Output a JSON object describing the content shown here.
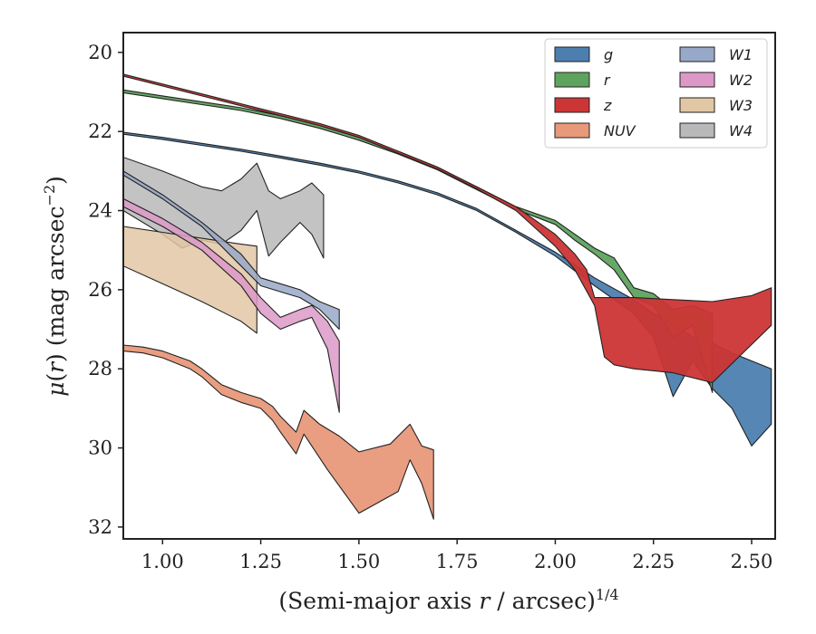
{
  "chart_data": {
    "type": "area",
    "xlabel": "(Semi-major axis r / arcsec)",
    "xlabel_main": "(Semi-major axis ",
    "xlabel_var": "r",
    "xlabel_rest": " / arcsec)",
    "xlabel_sup": "1/4",
    "ylabel_mu": "μ",
    "ylabel_paren_open": "(",
    "ylabel_var": "r",
    "ylabel_paren_close": ")",
    "ylabel_unit": " (mag arcsec",
    "ylabel_sup": "−2",
    "ylabel_end": ")",
    "xlim": [
      0.9,
      2.56
    ],
    "ylim": [
      32.3,
      19.5
    ],
    "y_inverted": true,
    "xticks": [
      1.0,
      1.25,
      1.5,
      1.75,
      2.0,
      2.25,
      2.5
    ],
    "xtick_labels": [
      "1.00",
      "1.25",
      "1.50",
      "1.75",
      "2.00",
      "2.25",
      "2.50"
    ],
    "yticks": [
      20,
      22,
      24,
      26,
      28,
      30,
      32
    ],
    "ytick_labels": [
      "20",
      "22",
      "24",
      "26",
      "28",
      "30",
      "32"
    ],
    "legend_placement": "top-right",
    "series": [
      {
        "name": "g",
        "color": "#4c7fb0",
        "upper": [
          [
            0.9,
            22.02
          ],
          [
            1.0,
            22.15
          ],
          [
            1.1,
            22.3
          ],
          [
            1.2,
            22.45
          ],
          [
            1.3,
            22.62
          ],
          [
            1.4,
            22.8
          ],
          [
            1.5,
            23.0
          ],
          [
            1.6,
            23.25
          ],
          [
            1.7,
            23.55
          ],
          [
            1.8,
            23.95
          ],
          [
            1.9,
            24.5
          ],
          [
            2.0,
            25.05
          ],
          [
            2.1,
            25.7
          ],
          [
            2.2,
            26.25
          ],
          [
            2.25,
            26.6
          ],
          [
            2.3,
            26.85
          ],
          [
            2.35,
            27.2
          ],
          [
            2.4,
            27.35
          ],
          [
            2.45,
            27.6
          ],
          [
            2.5,
            27.8
          ],
          [
            2.55,
            28.0
          ]
        ],
        "lower": [
          [
            0.9,
            22.07
          ],
          [
            1.0,
            22.2
          ],
          [
            1.1,
            22.35
          ],
          [
            1.2,
            22.5
          ],
          [
            1.3,
            22.67
          ],
          [
            1.4,
            22.85
          ],
          [
            1.5,
            23.05
          ],
          [
            1.6,
            23.3
          ],
          [
            1.7,
            23.6
          ],
          [
            1.8,
            24.0
          ],
          [
            1.9,
            24.55
          ],
          [
            2.0,
            25.15
          ],
          [
            2.1,
            25.9
          ],
          [
            2.2,
            26.6
          ],
          [
            2.25,
            27.2
          ],
          [
            2.3,
            28.7
          ],
          [
            2.35,
            27.8
          ],
          [
            2.4,
            28.5
          ],
          [
            2.45,
            29.0
          ],
          [
            2.5,
            29.95
          ],
          [
            2.55,
            29.4
          ]
        ]
      },
      {
        "name": "r",
        "color": "#5ea45e",
        "upper": [
          [
            0.9,
            20.95
          ],
          [
            1.0,
            21.1
          ],
          [
            1.1,
            21.25
          ],
          [
            1.2,
            21.4
          ],
          [
            1.3,
            21.6
          ],
          [
            1.4,
            21.85
          ],
          [
            1.5,
            22.15
          ],
          [
            1.6,
            22.5
          ],
          [
            1.7,
            22.9
          ],
          [
            1.8,
            23.4
          ],
          [
            1.9,
            23.9
          ],
          [
            2.0,
            24.25
          ],
          [
            2.05,
            24.6
          ],
          [
            2.1,
            24.95
          ],
          [
            2.15,
            25.2
          ],
          [
            2.2,
            25.95
          ],
          [
            2.25,
            26.1
          ],
          [
            2.3,
            26.5
          ],
          [
            2.35,
            26.4
          ],
          [
            2.4,
            26.6
          ]
        ],
        "lower": [
          [
            0.9,
            21.02
          ],
          [
            1.0,
            21.17
          ],
          [
            1.1,
            21.32
          ],
          [
            1.2,
            21.47
          ],
          [
            1.3,
            21.67
          ],
          [
            1.4,
            21.92
          ],
          [
            1.5,
            22.22
          ],
          [
            1.6,
            22.57
          ],
          [
            1.7,
            22.97
          ],
          [
            1.8,
            23.47
          ],
          [
            1.9,
            23.97
          ],
          [
            2.0,
            24.35
          ],
          [
            2.05,
            24.75
          ],
          [
            2.1,
            25.1
          ],
          [
            2.15,
            25.5
          ],
          [
            2.2,
            26.2
          ],
          [
            2.25,
            26.4
          ],
          [
            2.3,
            27.2
          ],
          [
            2.35,
            26.9
          ],
          [
            2.4,
            28.6
          ]
        ]
      },
      {
        "name": "z",
        "color": "#cc3535",
        "upper": [
          [
            0.9,
            20.55
          ],
          [
            1.0,
            20.8
          ],
          [
            1.1,
            21.05
          ],
          [
            1.2,
            21.3
          ],
          [
            1.3,
            21.55
          ],
          [
            1.4,
            21.8
          ],
          [
            1.5,
            22.1
          ],
          [
            1.6,
            22.5
          ],
          [
            1.7,
            22.9
          ],
          [
            1.8,
            23.4
          ],
          [
            1.9,
            23.9
          ],
          [
            2.0,
            24.6
          ],
          [
            2.05,
            25.1
          ],
          [
            2.08,
            25.5
          ],
          [
            2.1,
            26.2
          ],
          [
            2.2,
            26.2
          ],
          [
            2.3,
            26.25
          ],
          [
            2.4,
            26.3
          ],
          [
            2.5,
            26.15
          ],
          [
            2.55,
            25.95
          ]
        ],
        "lower": [
          [
            0.9,
            20.6
          ],
          [
            1.0,
            20.85
          ],
          [
            1.1,
            21.1
          ],
          [
            1.2,
            21.35
          ],
          [
            1.3,
            21.6
          ],
          [
            1.4,
            21.85
          ],
          [
            1.5,
            22.15
          ],
          [
            1.6,
            22.55
          ],
          [
            1.7,
            22.95
          ],
          [
            1.8,
            23.45
          ],
          [
            1.9,
            24.0
          ],
          [
            2.0,
            24.9
          ],
          [
            2.05,
            25.5
          ],
          [
            2.1,
            26.4
          ],
          [
            2.125,
            27.7
          ],
          [
            2.15,
            27.9
          ],
          [
            2.2,
            28.0
          ],
          [
            2.3,
            28.1
          ],
          [
            2.4,
            28.35
          ],
          [
            2.55,
            26.9
          ]
        ]
      },
      {
        "name": "NUV",
        "color": "#e8997a",
        "upper": [
          [
            0.9,
            27.4
          ],
          [
            0.95,
            27.45
          ],
          [
            1.0,
            27.55
          ],
          [
            1.07,
            27.8
          ],
          [
            1.1,
            28.0
          ],
          [
            1.15,
            28.4
          ],
          [
            1.2,
            28.6
          ],
          [
            1.25,
            28.75
          ],
          [
            1.28,
            28.95
          ],
          [
            1.3,
            29.2
          ],
          [
            1.34,
            29.6
          ],
          [
            1.36,
            29.05
          ],
          [
            1.4,
            29.4
          ],
          [
            1.45,
            29.7
          ],
          [
            1.5,
            30.1
          ],
          [
            1.58,
            29.9
          ],
          [
            1.63,
            29.4
          ],
          [
            1.66,
            29.95
          ],
          [
            1.69,
            30.05
          ]
        ],
        "lower": [
          [
            0.9,
            27.55
          ],
          [
            0.95,
            27.6
          ],
          [
            1.0,
            27.72
          ],
          [
            1.07,
            28.0
          ],
          [
            1.1,
            28.2
          ],
          [
            1.15,
            28.65
          ],
          [
            1.2,
            28.85
          ],
          [
            1.25,
            29.0
          ],
          [
            1.28,
            29.3
          ],
          [
            1.3,
            29.6
          ],
          [
            1.34,
            30.15
          ],
          [
            1.36,
            29.65
          ],
          [
            1.42,
            30.55
          ],
          [
            1.5,
            31.65
          ],
          [
            1.6,
            31.1
          ],
          [
            1.63,
            30.3
          ],
          [
            1.66,
            30.9
          ],
          [
            1.69,
            31.8
          ]
        ]
      },
      {
        "name": "W1",
        "color": "#98a8c8",
        "upper": [
          [
            0.9,
            23.0
          ],
          [
            1.0,
            23.6
          ],
          [
            1.1,
            24.3
          ],
          [
            1.2,
            25.1
          ],
          [
            1.25,
            25.7
          ],
          [
            1.3,
            25.85
          ],
          [
            1.35,
            26.0
          ],
          [
            1.4,
            26.3
          ],
          [
            1.45,
            26.5
          ]
        ],
        "lower": [
          [
            0.9,
            23.1
          ],
          [
            1.0,
            23.7
          ],
          [
            1.1,
            24.4
          ],
          [
            1.2,
            25.4
          ],
          [
            1.25,
            25.9
          ],
          [
            1.3,
            26.05
          ],
          [
            1.35,
            26.2
          ],
          [
            1.4,
            26.5
          ],
          [
            1.45,
            27.0
          ]
        ]
      },
      {
        "name": "W2",
        "color": "#dc99c8",
        "upper": [
          [
            0.9,
            23.7
          ],
          [
            1.0,
            24.2
          ],
          [
            1.1,
            24.8
          ],
          [
            1.2,
            25.6
          ],
          [
            1.25,
            26.2
          ],
          [
            1.3,
            26.7
          ],
          [
            1.35,
            26.5
          ],
          [
            1.38,
            26.4
          ],
          [
            1.42,
            26.8
          ],
          [
            1.45,
            27.3
          ]
        ],
        "lower": [
          [
            0.9,
            23.9
          ],
          [
            1.0,
            24.4
          ],
          [
            1.1,
            25.0
          ],
          [
            1.2,
            25.9
          ],
          [
            1.25,
            26.6
          ],
          [
            1.3,
            27.0
          ],
          [
            1.35,
            26.8
          ],
          [
            1.38,
            26.7
          ],
          [
            1.42,
            27.5
          ],
          [
            1.45,
            29.1
          ]
        ]
      },
      {
        "name": "W3",
        "color": "#e2c7a4",
        "upper": [
          [
            0.9,
            24.4
          ],
          [
            1.0,
            24.55
          ],
          [
            1.1,
            24.7
          ],
          [
            1.2,
            24.85
          ],
          [
            1.24,
            24.9
          ]
        ],
        "lower": [
          [
            0.9,
            25.4
          ],
          [
            1.0,
            25.85
          ],
          [
            1.1,
            26.3
          ],
          [
            1.2,
            26.8
          ],
          [
            1.24,
            27.1
          ]
        ]
      },
      {
        "name": "W4",
        "color": "#b9b9b9",
        "upper": [
          [
            0.9,
            22.65
          ],
          [
            1.0,
            23.0
          ],
          [
            1.1,
            23.4
          ],
          [
            1.15,
            23.5
          ],
          [
            1.2,
            23.2
          ],
          [
            1.24,
            22.8
          ],
          [
            1.27,
            23.5
          ],
          [
            1.3,
            23.7
          ],
          [
            1.35,
            23.5
          ],
          [
            1.38,
            23.3
          ],
          [
            1.41,
            23.6
          ]
        ],
        "lower": [
          [
            0.9,
            24.0
          ],
          [
            1.0,
            24.6
          ],
          [
            1.05,
            24.95
          ],
          [
            1.1,
            24.75
          ],
          [
            1.15,
            24.85
          ],
          [
            1.2,
            24.5
          ],
          [
            1.24,
            24.0
          ],
          [
            1.27,
            25.15
          ],
          [
            1.3,
            24.8
          ],
          [
            1.35,
            24.3
          ],
          [
            1.38,
            24.6
          ],
          [
            1.41,
            25.2
          ]
        ]
      }
    ],
    "legend_columns": [
      [
        "g",
        "r",
        "z",
        "NUV"
      ],
      [
        "W1",
        "W2",
        "W3",
        "W4"
      ]
    ]
  }
}
